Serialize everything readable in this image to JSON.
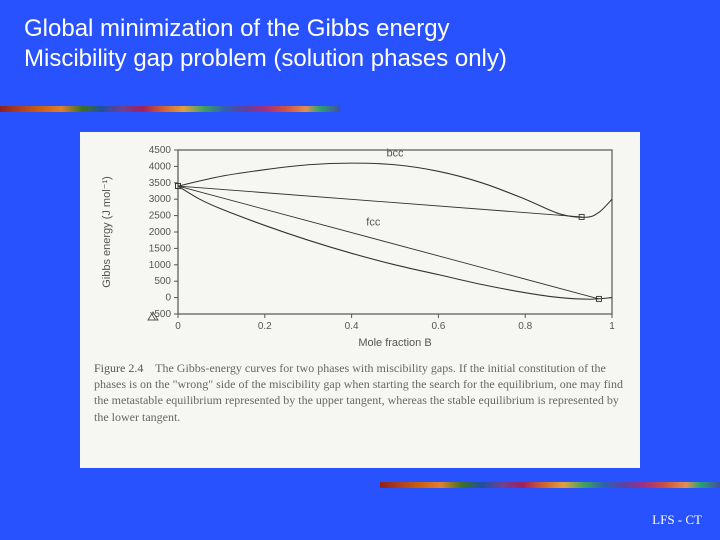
{
  "title": {
    "line1": "Global minimization of the Gibbs energy",
    "line2": "Miscibility gap problem (solution phases only)"
  },
  "footer": "LFS - CT",
  "chart": {
    "type": "line",
    "background_color": "#f6f6f2",
    "axis_color": "#555555",
    "line_color": "#333333",
    "line_width": 1.1,
    "axis_line_width": 1.2,
    "font_size_axis": 10,
    "font_size_label": 11,
    "xlabel": "Mole fraction B",
    "ylabel": "Gibbs energy (J mol⁻¹)",
    "xlim": [
      0,
      1.0
    ],
    "ylim": [
      -500,
      4500
    ],
    "xticks": [
      0,
      0.2,
      0.4,
      0.6,
      0.8,
      1.0
    ],
    "yticks": [
      -500,
      0,
      500,
      1000,
      1500,
      2000,
      2500,
      3000,
      3500,
      4000,
      4500
    ],
    "series": {
      "bcc": {
        "label": "bcc",
        "label_pos": {
          "x": 0.5,
          "y": 4300
        },
        "points": [
          {
            "x": 0.0,
            "y": 3400
          },
          {
            "x": 0.1,
            "y": 3700
          },
          {
            "x": 0.2,
            "y": 3900
          },
          {
            "x": 0.3,
            "y": 4050
          },
          {
            "x": 0.4,
            "y": 4100
          },
          {
            "x": 0.5,
            "y": 4050
          },
          {
            "x": 0.6,
            "y": 3850
          },
          {
            "x": 0.7,
            "y": 3500
          },
          {
            "x": 0.8,
            "y": 3000
          },
          {
            "x": 0.88,
            "y": 2550
          },
          {
            "x": 0.94,
            "y": 2450
          },
          {
            "x": 0.97,
            "y": 2600
          },
          {
            "x": 1.0,
            "y": 3000
          }
        ]
      },
      "fcc": {
        "label": "fcc",
        "label_pos": {
          "x": 0.45,
          "y": 2200
        },
        "points": [
          {
            "x": 0.0,
            "y": 3400
          },
          {
            "x": 0.05,
            "y": 3000
          },
          {
            "x": 0.1,
            "y": 2700
          },
          {
            "x": 0.2,
            "y": 2200
          },
          {
            "x": 0.3,
            "y": 1750
          },
          {
            "x": 0.4,
            "y": 1350
          },
          {
            "x": 0.5,
            "y": 1000
          },
          {
            "x": 0.6,
            "y": 700
          },
          {
            "x": 0.7,
            "y": 400
          },
          {
            "x": 0.8,
            "y": 150
          },
          {
            "x": 0.88,
            "y": 0
          },
          {
            "x": 0.95,
            "y": -50
          },
          {
            "x": 1.0,
            "y": 0
          }
        ]
      },
      "tangent_upper": {
        "points": [
          {
            "x": 0.0,
            "y": 3400
          },
          {
            "x": 0.93,
            "y": 2460
          }
        ],
        "endpoint_markers": true
      },
      "tangent_lower": {
        "points": [
          {
            "x": 0.0,
            "y": 3400
          },
          {
            "x": 0.97,
            "y": -40
          }
        ],
        "endpoint_markers": true
      }
    }
  },
  "caption": {
    "label": "Figure 2.4",
    "text": "The Gibbs-energy curves for two phases with miscibility gaps. If the initial constitution of the phases is on the \"wrong\" side of the miscibility gap when starting the search for the equilibrium, one may find the metastable equilibrium represented by the upper tangent, whereas the stable equilibrium is represented by the lower tangent."
  }
}
